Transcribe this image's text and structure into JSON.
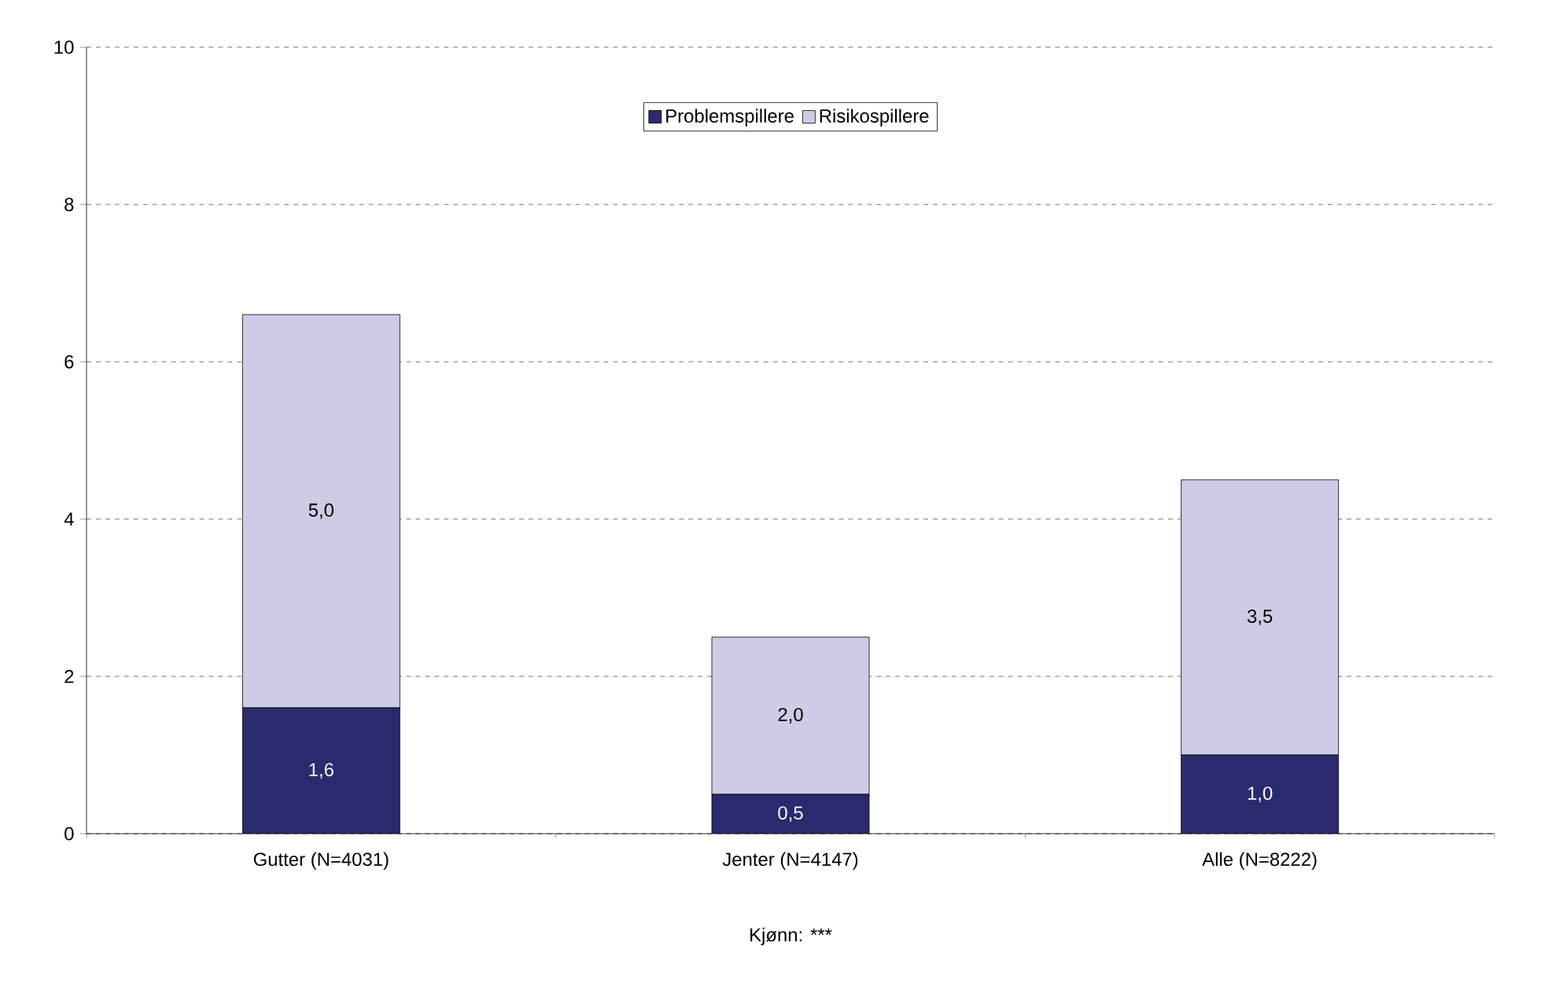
{
  "chart_data": {
    "type": "bar",
    "stacked": true,
    "xlabel": "Kjønn: ***",
    "categories": [
      "Gutter (N=4031)",
      "Jenter (N=4147)",
      "Alle (N=8222)"
    ],
    "series": [
      {
        "name": "Problemspillere",
        "color": "#2b2a6e",
        "values": [
          1.6,
          0.5,
          1.0
        ],
        "value_labels": [
          "1,6",
          "0,5",
          "1,0"
        ]
      },
      {
        "name": "Risikospillere",
        "color": "#cccce6",
        "values": [
          5.0,
          2.0,
          3.5
        ],
        "value_labels": [
          "5,0",
          "2,0",
          "3,5"
        ]
      }
    ],
    "ylim": [
      0,
      10
    ],
    "yticks": [
      0,
      2,
      4,
      6,
      8,
      10
    ],
    "grid": "y",
    "legend": "top"
  }
}
